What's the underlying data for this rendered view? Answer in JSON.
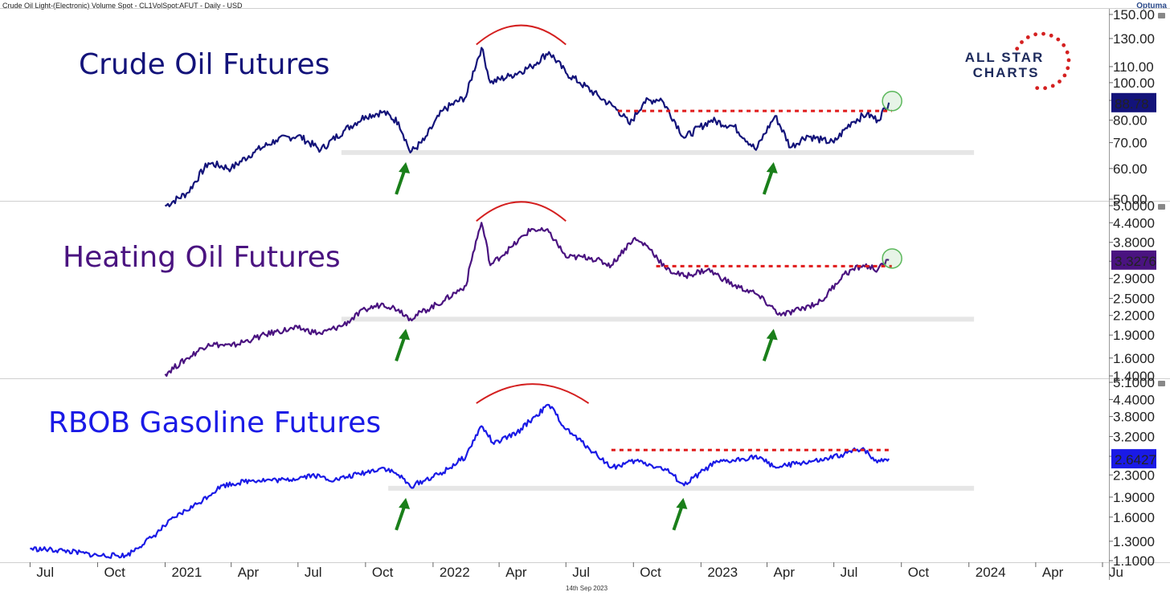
{
  "header": {
    "title": "Crude Oil Light-(Electronic) Volume Spot - CL1VolSpot:AFUT - Daily - USD",
    "brand": "Optuma"
  },
  "logo": {
    "line1": "ALL STAR",
    "line2": "CHARTS"
  },
  "footer": {
    "date": "14th Sep 2023"
  },
  "x_axis": {
    "ticks": [
      "Jul",
      "Oct",
      "2021",
      "Apr",
      "Jul",
      "Oct",
      "2022",
      "Apr",
      "Jul",
      "Oct",
      "2023",
      "Apr",
      "Jul",
      "Oct",
      "2024",
      "Apr",
      "Ju"
    ]
  },
  "colors": {
    "crude": "#13137a",
    "heating": "#4a1380",
    "gasoline": "#1a1ae6",
    "resistance": "#e01b1b",
    "arc": "#d42020",
    "arrow": "#1a7f1a",
    "support": "#e6e6e6",
    "circle": "#5cb85c"
  },
  "chart_data": [
    {
      "type": "line",
      "title": "Crude Oil Futures",
      "scale": "log",
      "ylim": [
        50,
        150
      ],
      "yticks": [
        "150.00",
        "130.00",
        "110.00",
        "100.00",
        "90.00",
        "80.00",
        "70.00",
        "60.00",
        "50.00"
      ],
      "last_value": "88.78",
      "series": [
        {
          "x": [
            "2021-01-01",
            "2021-02-01",
            "2021-03-01",
            "2021-04-01",
            "2021-05-01",
            "2021-06-01",
            "2021-07-01",
            "2021-08-01",
            "2021-09-01",
            "2021-10-01",
            "2021-10-25",
            "2021-11-15",
            "2021-12-01",
            "2021-12-20",
            "2022-01-15",
            "2022-02-15",
            "2022-03-08",
            "2022-03-20",
            "2022-04-15",
            "2022-05-15",
            "2022-06-08",
            "2022-07-01",
            "2022-07-20",
            "2022-08-15",
            "2022-09-10",
            "2022-09-26",
            "2022-10-15",
            "2022-11-07",
            "2022-12-09",
            "2023-01-15",
            "2023-02-15",
            "2023-03-17",
            "2023-04-12",
            "2023-05-03",
            "2023-05-25",
            "2023-06-15",
            "2023-07-01",
            "2023-07-25",
            "2023-08-15",
            "2023-08-30",
            "2023-09-14"
          ],
          "y": [
            48,
            52,
            62,
            60,
            66,
            71,
            73,
            67,
            75,
            82,
            84,
            79,
            66,
            71,
            85,
            92,
            123,
            100,
            104,
            110,
            120,
            106,
            100,
            92,
            85,
            78,
            89,
            91,
            72,
            80,
            77,
            67,
            82,
            68,
            73,
            71,
            70,
            79,
            83,
            80,
            88.78
          ]
        }
      ],
      "resistance": 84.5,
      "support": 66
    },
    {
      "type": "line",
      "title": "Heating Oil Futures",
      "scale": "log",
      "ylim": [
        1.4,
        5.0
      ],
      "yticks": [
        "5.0000",
        "4.4000",
        "3.8000",
        "3.3000",
        "2.9000",
        "2.5000",
        "2.2000",
        "1.9000",
        "1.6000",
        "1.4000"
      ],
      "last_value": "3.3276",
      "series": [
        {
          "x": [
            "2021-01-01",
            "2021-02-01",
            "2021-03-01",
            "2021-04-01",
            "2021-05-01",
            "2021-06-01",
            "2021-07-01",
            "2021-08-01",
            "2021-09-01",
            "2021-10-01",
            "2021-10-25",
            "2021-11-15",
            "2021-12-01",
            "2022-01-15",
            "2022-02-15",
            "2022-03-08",
            "2022-03-20",
            "2022-04-20",
            "2022-05-15",
            "2022-06-08",
            "2022-07-01",
            "2022-08-01",
            "2022-09-01",
            "2022-10-01",
            "2022-10-20",
            "2022-11-15",
            "2022-12-09",
            "2023-01-10",
            "2023-02-15",
            "2023-03-15",
            "2023-04-20",
            "2023-05-15",
            "2023-06-15",
            "2023-07-15",
            "2023-08-10",
            "2023-08-30",
            "2023-09-14"
          ],
          "y": [
            1.42,
            1.6,
            1.78,
            1.75,
            1.85,
            1.95,
            2.0,
            1.92,
            2.05,
            2.3,
            2.4,
            2.3,
            2.15,
            2.45,
            2.75,
            4.4,
            3.2,
            3.7,
            4.2,
            4.1,
            3.4,
            3.4,
            3.2,
            3.9,
            3.7,
            3.1,
            2.95,
            3.1,
            2.75,
            2.6,
            2.2,
            2.3,
            2.45,
            3.0,
            3.2,
            3.1,
            3.3276
          ]
        }
      ],
      "resistance": 3.18,
      "support": 2.14
    },
    {
      "type": "line",
      "title": "RBOB Gasoline Futures",
      "scale": "log",
      "ylim": [
        1.1,
        5.1
      ],
      "yticks": [
        "5.1000",
        "4.4000",
        "3.8000",
        "3.2000",
        "2.7000",
        "2.3000",
        "1.9000",
        "1.6000",
        "1.3000",
        "1.1000"
      ],
      "last_value": "2.6427",
      "series": [
        {
          "x": [
            "2020-07-01",
            "2020-08-15",
            "2020-10-01",
            "2020-11-10",
            "2020-12-15",
            "2021-01-15",
            "2021-02-15",
            "2021-03-20",
            "2021-05-01",
            "2021-06-15",
            "2021-07-20",
            "2021-08-20",
            "2021-10-01",
            "2021-10-25",
            "2021-11-15",
            "2021-12-01",
            "2022-01-15",
            "2022-02-15",
            "2022-03-08",
            "2022-03-25",
            "2022-04-25",
            "2022-05-20",
            "2022-06-08",
            "2022-07-01",
            "2022-08-01",
            "2022-09-01",
            "2022-10-05",
            "2022-11-15",
            "2022-12-09",
            "2023-01-20",
            "2023-02-15",
            "2023-03-15",
            "2023-04-15",
            "2023-05-15",
            "2023-06-15",
            "2023-07-15",
            "2023-08-10",
            "2023-08-25",
            "2023-09-14"
          ],
          "y": [
            1.22,
            1.2,
            1.15,
            1.15,
            1.35,
            1.6,
            1.8,
            2.1,
            2.2,
            2.2,
            2.3,
            2.2,
            2.35,
            2.45,
            2.3,
            2.08,
            2.35,
            2.7,
            3.5,
            3.0,
            3.3,
            3.8,
            4.2,
            3.4,
            2.9,
            2.45,
            2.6,
            2.4,
            2.1,
            2.55,
            2.6,
            2.7,
            2.45,
            2.55,
            2.6,
            2.75,
            2.9,
            2.6,
            2.6427
          ]
        }
      ],
      "resistance": 2.85,
      "support": 2.05
    }
  ]
}
